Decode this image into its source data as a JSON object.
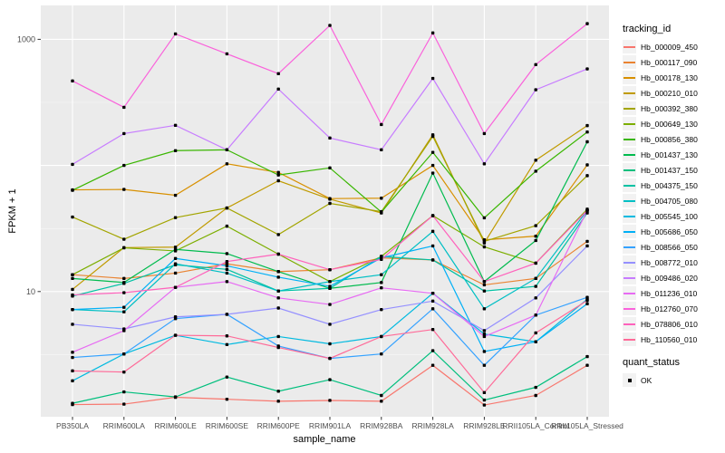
{
  "figure": {
    "y_axis": {
      "title": "FPKM + 1"
    },
    "x_axis": {
      "title": "sample_name"
    },
    "legend_tracking": {
      "title": "tracking_id"
    },
    "legend_quant": {
      "title": "quant_status",
      "ok_label": "OK"
    }
  },
  "chart_data": {
    "type": "line",
    "title": "",
    "xlabel": "sample_name",
    "ylabel": "FPKM + 1",
    "x_type": "categorical",
    "y_scale": "log10",
    "ylim": [
      1,
      1800
    ],
    "y_tick_values": [
      1000,
      10
    ],
    "y_tick_labels": [
      "1000",
      "10"
    ],
    "y_major_gridlines": [
      10,
      100,
      1000
    ],
    "y_minor_gridlines": [
      3.162,
      31.62,
      316.23
    ],
    "grid": "on",
    "panel_bg": "#EBEBEB",
    "gridline_color": "#FFFFFF",
    "point_color": "#000000",
    "tick_label_color": "#4D4D4D",
    "legend_position": "right",
    "quant_status_label": "OK",
    "categories": [
      "PB350LA",
      "RRIM600LA",
      "RRIM600LE",
      "RRIM600SE",
      "RRIM600PE",
      "RRIM901LA",
      "RRIM928BA",
      "RRIM928LA",
      "RRIM928LE",
      "RRII105LA_Control",
      "RRII105LA_Stressed"
    ],
    "series": [
      {
        "name": "Hb_000009_450",
        "color": "#F8766D",
        "values": [
          1.27,
          1.28,
          1.45,
          1.4,
          1.35,
          1.37,
          1.35,
          2.6,
          1.26,
          1.5,
          2.6
        ]
      },
      {
        "name": "Hb_000117_090",
        "color": "#EA8331",
        "values": [
          13.6,
          12.7,
          14.0,
          16.6,
          14.4,
          14.9,
          18.5,
          17.8,
          11.3,
          12.7,
          25.0
        ]
      },
      {
        "name": "Hb_000178_130",
        "color": "#D89000",
        "values": [
          64,
          64.5,
          58,
          103,
          88,
          54.6,
          55,
          100,
          25.7,
          27.5,
          101
        ]
      },
      {
        "name": "Hb_000210_010",
        "color": "#C09B00",
        "values": [
          10.4,
          22.3,
          22.5,
          46,
          75.6,
          54,
          42,
          175,
          24.3,
          110,
          207
        ]
      },
      {
        "name": "Hb_000392_380",
        "color": "#A3A500",
        "values": [
          39,
          26,
          38.6,
          46,
          28.3,
          50,
          43,
          170,
          25.0,
          33.3,
          83
        ]
      },
      {
        "name": "Hb_000649_130",
        "color": "#7CAE00",
        "values": [
          13.6,
          22.2,
          21.0,
          33,
          19.8,
          12.0,
          19.0,
          40,
          22.6,
          16.8,
          45
        ]
      },
      {
        "name": "Hb_000856_380",
        "color": "#39B600",
        "values": [
          63.5,
          100,
          131,
          133,
          84,
          95.6,
          42.7,
          127,
          38.4,
          90,
          184
        ]
      },
      {
        "name": "Hb_001437_130",
        "color": "#00BB4E",
        "values": [
          12.7,
          11.8,
          21.6,
          20,
          14.4,
          10.6,
          11.8,
          87,
          12.0,
          25.4,
          154
        ]
      },
      {
        "name": "Hb_001437_150",
        "color": "#00BF7D",
        "values": [
          1.3,
          1.6,
          1.46,
          2.1,
          1.62,
          2.0,
          1.5,
          3.4,
          1.38,
          1.74,
          3.05
        ]
      },
      {
        "name": "Hb_004375_150",
        "color": "#00C1A3",
        "values": [
          9.2,
          11.6,
          16.3,
          15.0,
          10.1,
          10.6,
          19.0,
          17.8,
          10.1,
          11.0,
          42
        ]
      },
      {
        "name": "Hb_004705_080",
        "color": "#00BFC4",
        "values": [
          7.2,
          6.9,
          16.6,
          14.0,
          10.1,
          12.0,
          13.6,
          30,
          7.3,
          12.7,
          44
        ]
      },
      {
        "name": "Hb_005545_100",
        "color": "#00BAE0",
        "values": [
          1.96,
          3.2,
          4.5,
          3.8,
          4.4,
          3.85,
          4.4,
          9.7,
          4.6,
          4.0,
          8.7
        ]
      },
      {
        "name": "Hb_005686_050",
        "color": "#00B0F6",
        "values": [
          7.2,
          7.5,
          18.3,
          16.0,
          13.0,
          11.0,
          18.5,
          23,
          3.35,
          4.0,
          8.0
        ]
      },
      {
        "name": "Hb_008566_050",
        "color": "#35A2FF",
        "values": [
          3.0,
          3.2,
          6.1,
          6.6,
          3.7,
          2.95,
          3.2,
          7.3,
          2.6,
          6.5,
          9.0
        ]
      },
      {
        "name": "Hb_008772_010",
        "color": "#9590FF",
        "values": [
          5.5,
          5.05,
          6.3,
          6.6,
          7.4,
          5.5,
          7.2,
          8.4,
          4.9,
          8.9,
          23
        ]
      },
      {
        "name": "Hb_009486_020",
        "color": "#C77CFF",
        "values": [
          102,
          179,
          208,
          133,
          403,
          165,
          133,
          490,
          103,
          398,
          583
        ]
      },
      {
        "name": "Hb_011236_010",
        "color": "#E76BF3",
        "values": [
          3.3,
          4.9,
          10.8,
          12.0,
          8.9,
          7.9,
          10.7,
          9.7,
          4.4,
          6.5,
          44
        ]
      },
      {
        "name": "Hb_012760_070",
        "color": "#FA62DB",
        "values": [
          468,
          289,
          1104,
          767,
          534,
          1289,
          211,
          1123,
          179,
          630,
          1331
        ]
      },
      {
        "name": "Hb_078806_010",
        "color": "#FF62BC",
        "values": [
          9.4,
          9.8,
          10.8,
          17.3,
          19.8,
          14.9,
          18.0,
          40,
          12.0,
          16.8,
          44
        ]
      },
      {
        "name": "Hb_110560_010",
        "color": "#FF6A98",
        "values": [
          2.35,
          2.3,
          4.5,
          4.45,
          3.6,
          2.95,
          4.4,
          5.0,
          1.58,
          4.7,
          8.5
        ]
      }
    ]
  }
}
